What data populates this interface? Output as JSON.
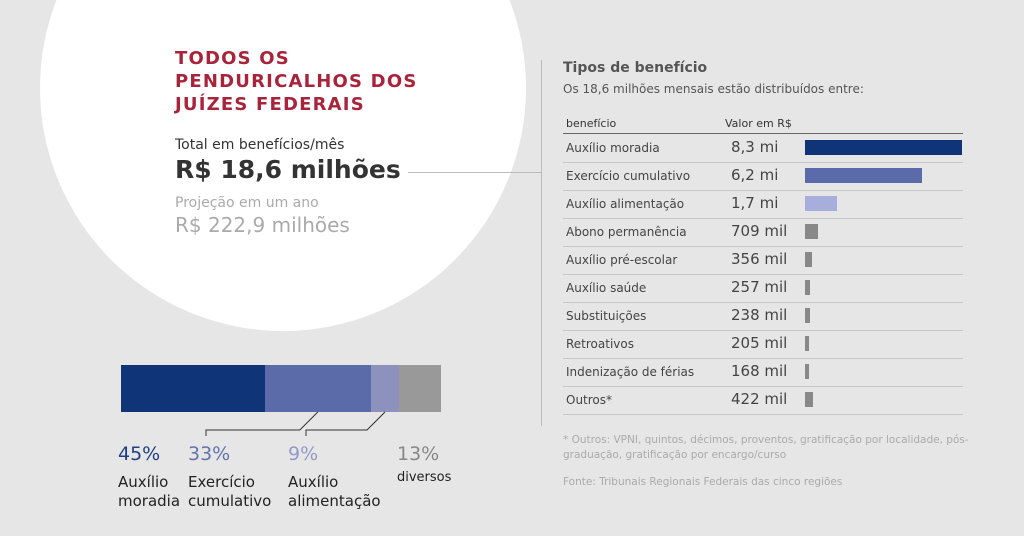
{
  "headline": {
    "title_lines": [
      "TODOS OS",
      "PENDURICALHOS DOS",
      "JUÍZES FEDERAIS"
    ],
    "total_label": "Total em benefícios/mês",
    "total_value": "R$ 18,6 milhões",
    "projection_label": "Projeção em um ano",
    "projection_value": "R$ 222,9 milhões"
  },
  "section": {
    "title": "Tipos de benefício",
    "subtitle": "Os 18,6 milhões mensais estão distribuídos entre:"
  },
  "table": {
    "col_name": "benefício",
    "col_value": "Valor em R$",
    "rows": [
      {
        "name": "Auxílio moradia",
        "label": "8,3 mi",
        "color": "#0f3578"
      },
      {
        "name": "Exercício cumulativo",
        "label": "6,2 mi",
        "color": "#5b6baa"
      },
      {
        "name": "Auxílio alimentação",
        "label": "1,7 mi",
        "color": "#a8aedb"
      },
      {
        "name": "Abono permanência",
        "label": "709 mil",
        "color": "#888888"
      },
      {
        "name": "Auxílio pré-escolar",
        "label": "356 mil",
        "color": "#888888"
      },
      {
        "name": "Auxílio saúde",
        "label": "257 mil",
        "color": "#888888"
      },
      {
        "name": "Substituições",
        "label": "238 mil",
        "color": "#888888"
      },
      {
        "name": "Retroativos",
        "label": "205 mil",
        "color": "#888888"
      },
      {
        "name": "Indenização de férias",
        "label": "168 mil",
        "color": "#888888"
      },
      {
        "name": "Outros*",
        "label": "422 mil",
        "color": "#888888"
      }
    ]
  },
  "footnote": "* Outros: VPNI, quintos, décimos, proventos, gratificação por localidade, pós-graduação, gratificação por encargo/curso",
  "source": "Fonte: Tribunais Regionais Federais das cinco regiões",
  "chart_data": [
    {
      "type": "bar",
      "orientation": "horizontal",
      "categories": [
        "Auxílio moradia",
        "Exercício cumulativo",
        "Auxílio alimentação",
        "Abono permanência",
        "Auxílio pré-escolar",
        "Auxílio saúde",
        "Substituições",
        "Retroativos",
        "Indenização de férias",
        "Outros*"
      ],
      "values": [
        8300000,
        6200000,
        1700000,
        709000,
        356000,
        257000,
        238000,
        205000,
        168000,
        422000
      ],
      "value_labels": [
        "8,3 mi",
        "6,2 mi",
        "1,7 mi",
        "709 mil",
        "356 mil",
        "257 mil",
        "238 mil",
        "205 mil",
        "168 mil",
        "422 mil"
      ],
      "colors": [
        "#0f3578",
        "#5b6baa",
        "#a8aedb",
        "#888888",
        "#888888",
        "#888888",
        "#888888",
        "#888888",
        "#888888",
        "#888888"
      ],
      "xlim": [
        0,
        8300000
      ]
    },
    {
      "type": "bar",
      "stacked": true,
      "segments": [
        {
          "label_lines": [
            "Auxílio",
            "moradia"
          ],
          "pct_label": "45%",
          "value": 45,
          "color": "#0f3578",
          "text_color": "#1f3f80"
        },
        {
          "label_lines": [
            "Exercício",
            "cumulativo"
          ],
          "pct_label": "33%",
          "value": 33,
          "color": "#5b6baa",
          "text_color": "#6573ad"
        },
        {
          "label_lines": [
            "Auxílio",
            "alimentação"
          ],
          "pct_label": "9%",
          "value": 9,
          "color": "#8d91bd",
          "text_color": "#9599c6"
        },
        {
          "label_lines": [
            "diversos"
          ],
          "pct_label": "13%",
          "value": 13,
          "color": "#999999",
          "text_color": "#888888"
        }
      ]
    }
  ]
}
